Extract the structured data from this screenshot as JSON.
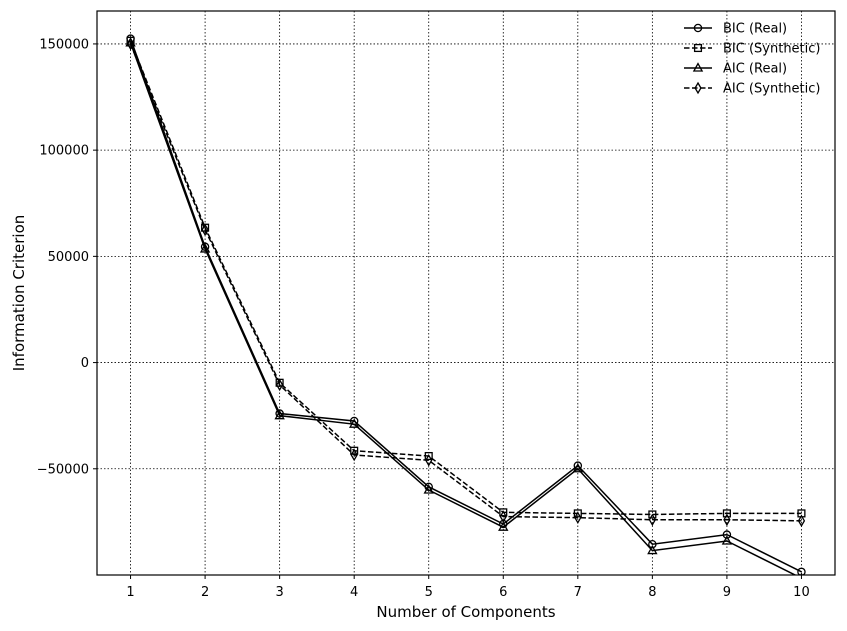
{
  "chart_data": {
    "type": "line",
    "xlabel": "Number of Components",
    "ylabel": "Information Criterion",
    "x": [
      1,
      2,
      3,
      4,
      5,
      6,
      7,
      8,
      9,
      10
    ],
    "xticks": [
      "1",
      "2",
      "3",
      "4",
      "5",
      "6",
      "7",
      "8",
      "9",
      "10"
    ],
    "yticks": [
      -50000,
      0,
      50000,
      100000,
      150000
    ],
    "ytick_labels": [
      "−50000",
      "0",
      "50000",
      "100000",
      "150000"
    ],
    "xlim": [
      0.55,
      10.45
    ],
    "ylim": [
      -100000,
      165500
    ],
    "grid": true,
    "legend_position": "top-right",
    "series": [
      {
        "name": "BIC (Real)",
        "marker": "circle",
        "dash": "solid",
        "values": [
          152500,
          54500,
          -24000,
          -27500,
          -58500,
          -76000,
          -48500,
          -85500,
          -81000,
          -98500
        ]
      },
      {
        "name": "BIC (Synthetic)",
        "marker": "square",
        "dash": "dashed",
        "values": [
          151500,
          63500,
          -9500,
          -41500,
          -44000,
          -70500,
          -71000,
          -71500,
          -71000,
          -71000
        ]
      },
      {
        "name": "AIC (Real)",
        "marker": "triangle",
        "dash": "solid",
        "values": [
          150500,
          53500,
          -25000,
          -29000,
          -60000,
          -77500,
          -50000,
          -88500,
          -84000,
          -101500
        ]
      },
      {
        "name": "AIC (Synthetic)",
        "marker": "diamond",
        "dash": "dashed",
        "values": [
          150000,
          62500,
          -10500,
          -43500,
          -46000,
          -72500,
          -73000,
          -74000,
          -74000,
          -74500
        ]
      }
    ]
  }
}
